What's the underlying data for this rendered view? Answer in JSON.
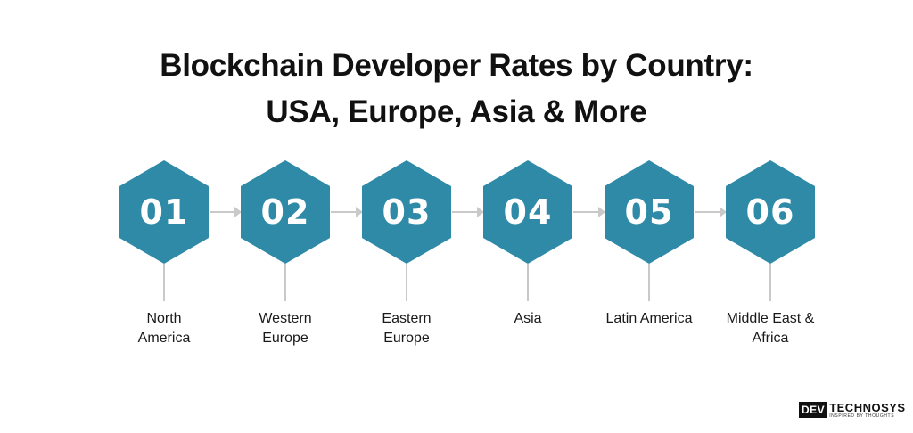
{
  "title": {
    "line1": "Blockchain Developer Rates by Country:",
    "line2": "USA, Europe, Asia & More"
  },
  "steps": [
    {
      "number": "01",
      "label_line1": "North",
      "label_line2": "America"
    },
    {
      "number": "02",
      "label_line1": "Western",
      "label_line2": "Europe"
    },
    {
      "number": "03",
      "label_line1": "Eastern",
      "label_line2": "Europe"
    },
    {
      "number": "04",
      "label_line1": "Asia",
      "label_line2": ""
    },
    {
      "number": "05",
      "label_line1": "Latin America",
      "label_line2": ""
    },
    {
      "number": "06",
      "label_line1": "Middle East &",
      "label_line2": "Africa"
    }
  ],
  "logo": {
    "box_text": "DEV",
    "main_text": "TECHNOSYS",
    "tagline": "INSPIRED BY THOUGHTS"
  },
  "colors": {
    "hexagon": "#2e8aa7",
    "connector": "#c9c9c9",
    "title": "#111111"
  }
}
